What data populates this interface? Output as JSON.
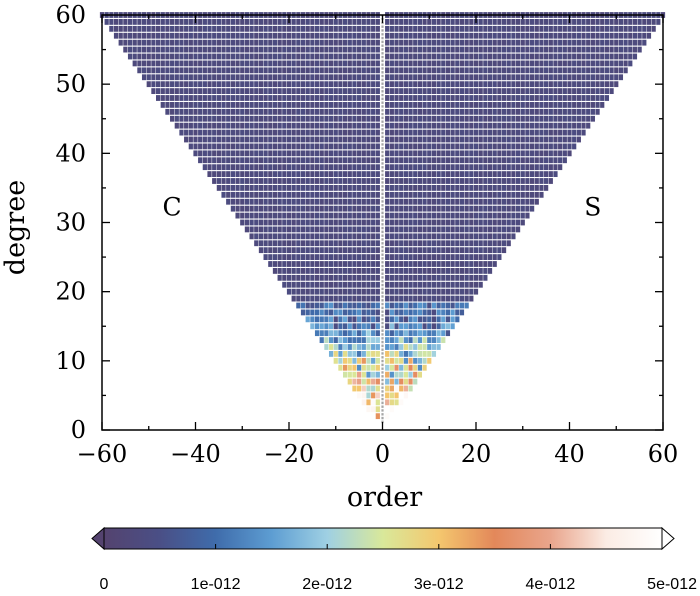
{
  "chart_data": {
    "type": "heatmap",
    "title": "",
    "xlabel": "order",
    "ylabel": "degree",
    "xlim": [
      -60,
      60
    ],
    "ylim": [
      0,
      60
    ],
    "xticks": [
      "−60",
      "−40",
      "−20",
      "0",
      "20",
      "40",
      "60"
    ],
    "yticks": [
      "0",
      "10",
      "20",
      "30",
      "40",
      "50",
      "60"
    ],
    "annotations": [
      {
        "text": "C",
        "x": -45,
        "y": 31
      },
      {
        "text": "S",
        "x": 45,
        "y": 31
      }
    ],
    "grid": false,
    "legend": "none",
    "colorbar": {
      "placement": "bottom",
      "ticks": [
        "0",
        "1e-012",
        "2e-012",
        "3e-012",
        "4e-012",
        "5e-012"
      ],
      "range": [
        0,
        5e-12
      ],
      "colors": [
        "#54436f",
        "#4a4f86",
        "#3f6cab",
        "#5d9dd2",
        "#9fd0e3",
        "#d9e89a",
        "#f4c76e",
        "#e3885a",
        "#e9a58c",
        "#fbece4",
        "#ffffff"
      ]
    },
    "cells_note_values": {
      "degree_range": [
        0,
        60
      ],
      "order_range": [
        -60,
        60
      ],
      "low_degree_band": [
        2,
        18
      ],
      "background_value": 3e-13
    }
  }
}
